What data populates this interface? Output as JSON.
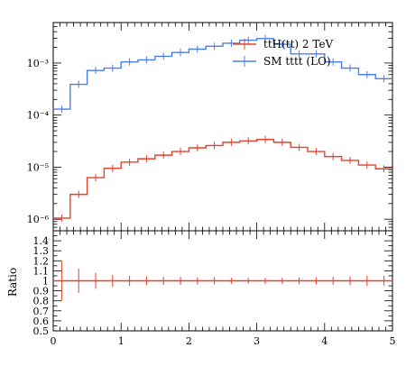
{
  "chart_data": [
    {
      "type": "line",
      "panel": "main",
      "yscale": "log",
      "xlim": [
        0,
        5
      ],
      "ylim": [
        6e-07,
        0.006
      ],
      "bin_edges": [
        0,
        0.25,
        0.5,
        0.75,
        1.0,
        1.25,
        1.5,
        1.75,
        2.0,
        2.25,
        2.5,
        2.75,
        3.0,
        3.25,
        3.5,
        3.75,
        4.0,
        4.25,
        4.5,
        4.75,
        5.0
      ],
      "y_ticks": [
        {
          "value": 1e-06,
          "label": "10⁻⁶"
        },
        {
          "value": 1e-05,
          "label": "10⁻⁵"
        },
        {
          "value": 0.0001,
          "label": "10⁻⁴"
        },
        {
          "value": 0.001,
          "label": "10⁻³"
        }
      ],
      "legend_position": "top-right",
      "series": [
        {
          "name": "ttH(tt) 2 TeV",
          "color": "#e8402a",
          "values": [
            1.05e-06,
            3e-06,
            6.3e-06,
            9.5e-06,
            1.25e-05,
            1.45e-05,
            1.7e-05,
            2e-05,
            2.35e-05,
            2.6e-05,
            3e-05,
            3.2e-05,
            3.4e-05,
            3e-05,
            2.4e-05,
            2e-05,
            1.6e-05,
            1.35e-05,
            1.1e-05,
            9.3e-06
          ]
        },
        {
          "name": "SM tttt (LO)",
          "color": "#4a7eec",
          "values": [
            0.00013,
            0.00039,
            0.00072,
            0.0008,
            0.00105,
            0.00115,
            0.00135,
            0.0016,
            0.00185,
            0.0021,
            0.0024,
            0.00275,
            0.00295,
            0.0023,
            0.0015,
            0.0015,
            0.00105,
            0.0008,
            0.0006,
            0.0005
          ]
        }
      ]
    },
    {
      "type": "line",
      "panel": "ratio",
      "ylabel": "Ratio",
      "xlim": [
        0,
        5
      ],
      "ylim": [
        0.5,
        1.5
      ],
      "x_ticks": [
        0,
        1,
        2,
        3,
        4,
        5
      ],
      "y_ticks": [
        0.5,
        0.6,
        0.7,
        0.8,
        0.9,
        1,
        1.1,
        1.2,
        1.3,
        1.4
      ],
      "series": [
        {
          "name": "ttH(tt) 2 TeV",
          "color": "#e8402a",
          "values": [
            1,
            1,
            1,
            1,
            1,
            1,
            1,
            1,
            1,
            1,
            1,
            1,
            1,
            1,
            1,
            1,
            1,
            1,
            1,
            1
          ],
          "err": [
            0.2,
            0.12,
            0.08,
            0.06,
            0.05,
            0.045,
            0.04,
            0.04,
            0.035,
            0.035,
            0.03,
            0.03,
            0.03,
            0.03,
            0.035,
            0.035,
            0.04,
            0.045,
            0.05,
            0.05
          ]
        }
      ]
    }
  ]
}
